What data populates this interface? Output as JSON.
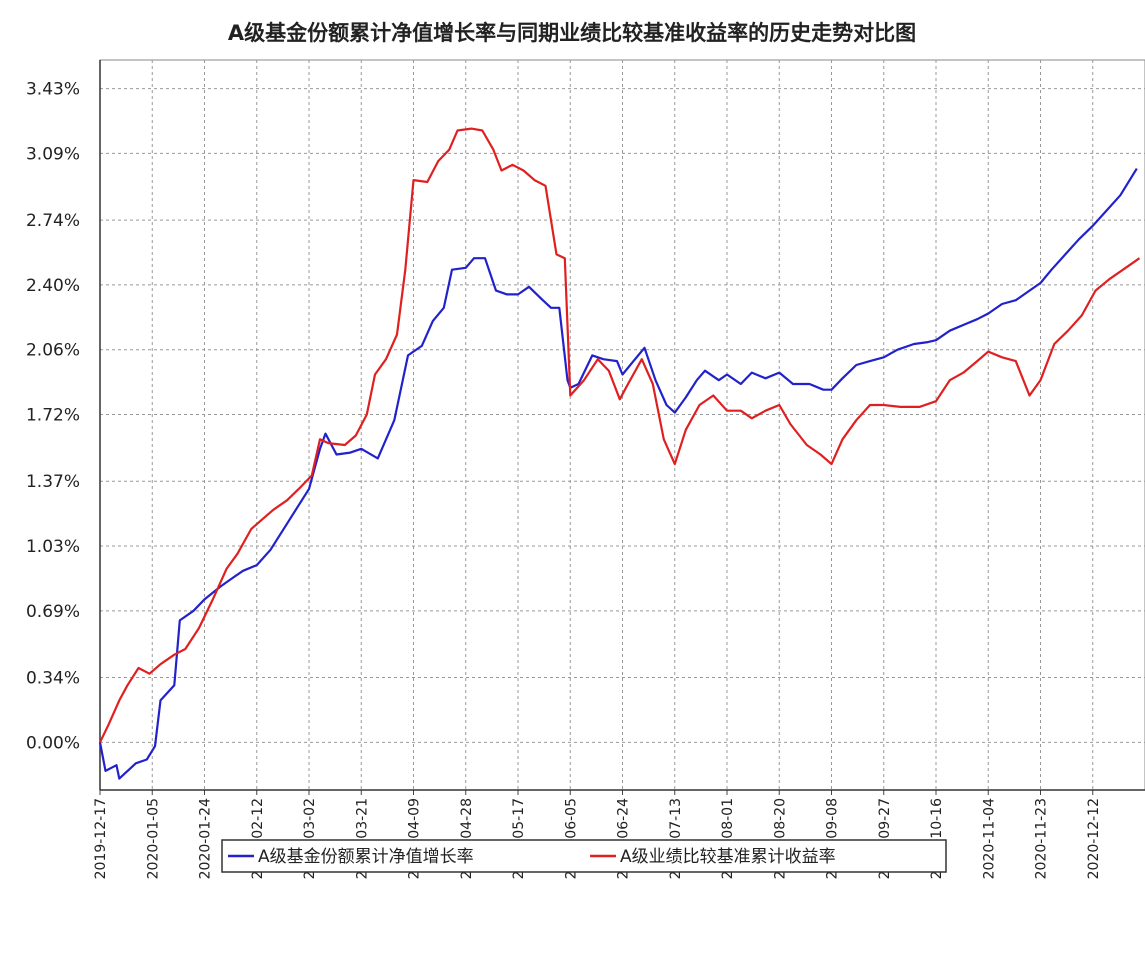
{
  "chart_data": {
    "type": "line",
    "title": "A级基金份额累计净值增长率与同期业绩比较基准收益率的历史走势对比图",
    "xlim": [
      "2019-12-17",
      "2020-12-31"
    ],
    "xticks": [
      "2019-12-17",
      "2020-01-05",
      "2020-01-24",
      "2020-02-12",
      "2020-03-02",
      "2020-03-21",
      "2020-04-09",
      "2020-04-28",
      "2020-05-17",
      "2020-06-05",
      "2020-06-24",
      "2020-07-13",
      "2020-08-01",
      "2020-08-20",
      "2020-09-08",
      "2020-09-27",
      "2020-10-16",
      "2020-11-04",
      "2020-11-23",
      "2020-12-12"
    ],
    "ylim": [
      -0.25,
      3.58
    ],
    "yticks": [
      {
        "value": 0.0,
        "label": "0.00%"
      },
      {
        "value": 0.34,
        "label": "0.34%"
      },
      {
        "value": 0.69,
        "label": "0.69%"
      },
      {
        "value": 1.03,
        "label": "1.03%"
      },
      {
        "value": 1.37,
        "label": "1.37%"
      },
      {
        "value": 1.72,
        "label": "1.72%"
      },
      {
        "value": 2.06,
        "label": "2.06%"
      },
      {
        "value": 2.4,
        "label": "2.40%"
      },
      {
        "value": 2.74,
        "label": "2.74%"
      },
      {
        "value": 3.09,
        "label": "3.09%"
      },
      {
        "value": 3.43,
        "label": "3.43%"
      }
    ],
    "grid": true,
    "legend": "bottom",
    "series": [
      {
        "name": "A级基金份额累计净值增长率",
        "color": "#2222cc",
        "x": [
          "2019-12-17",
          "2019-12-19",
          "2019-12-23",
          "2019-12-24",
          "2019-12-30",
          "2020-01-03",
          "2020-01-06",
          "2020-01-08",
          "2020-01-13",
          "2020-01-15",
          "2020-01-20",
          "2020-01-24",
          "2020-01-30",
          "2020-02-03",
          "2020-02-07",
          "2020-02-12",
          "2020-02-17",
          "2020-02-24",
          "2020-03-02",
          "2020-03-06",
          "2020-03-08",
          "2020-03-12",
          "2020-03-17",
          "2020-03-21",
          "2020-03-27",
          "2020-04-02",
          "2020-04-07",
          "2020-04-12",
          "2020-04-16",
          "2020-04-20",
          "2020-04-23",
          "2020-04-28",
          "2020-05-01",
          "2020-05-05",
          "2020-05-09",
          "2020-05-13",
          "2020-05-17",
          "2020-05-21",
          "2020-05-26",
          "2020-05-29",
          "2020-06-01",
          "2020-06-04",
          "2020-06-05",
          "2020-06-08",
          "2020-06-13",
          "2020-06-17",
          "2020-06-22",
          "2020-06-24",
          "2020-06-28",
          "2020-07-02",
          "2020-07-06",
          "2020-07-10",
          "2020-07-13",
          "2020-07-17",
          "2020-07-21",
          "2020-07-24",
          "2020-07-29",
          "2020-08-01",
          "2020-08-06",
          "2020-08-10",
          "2020-08-15",
          "2020-08-20",
          "2020-08-25",
          "2020-08-31",
          "2020-09-05",
          "2020-09-08",
          "2020-09-12",
          "2020-09-17",
          "2020-09-22",
          "2020-09-27",
          "2020-10-02",
          "2020-10-08",
          "2020-10-13",
          "2020-10-16",
          "2020-10-21",
          "2020-10-26",
          "2020-10-31",
          "2020-11-04",
          "2020-11-09",
          "2020-11-14",
          "2020-11-19",
          "2020-11-23",
          "2020-11-27",
          "2020-12-02",
          "2020-12-07",
          "2020-12-12",
          "2020-12-17",
          "2020-12-22",
          "2020-12-28"
        ],
        "values": [
          0.0,
          -0.15,
          -0.12,
          -0.19,
          -0.11,
          -0.09,
          -0.02,
          0.22,
          0.3,
          0.64,
          0.69,
          0.75,
          0.82,
          0.86,
          0.9,
          0.93,
          1.01,
          1.17,
          1.33,
          1.54,
          1.62,
          1.51,
          1.52,
          1.54,
          1.49,
          1.69,
          2.03,
          2.08,
          2.21,
          2.28,
          2.48,
          2.49,
          2.54,
          2.54,
          2.37,
          2.35,
          2.35,
          2.39,
          2.32,
          2.28,
          2.28,
          1.9,
          1.86,
          1.88,
          2.03,
          2.01,
          2.0,
          1.93,
          2.0,
          2.07,
          1.9,
          1.77,
          1.73,
          1.81,
          1.9,
          1.95,
          1.9,
          1.93,
          1.88,
          1.94,
          1.91,
          1.94,
          1.88,
          1.88,
          1.85,
          1.85,
          1.91,
          1.98,
          2.0,
          2.02,
          2.06,
          2.09,
          2.1,
          2.11,
          2.16,
          2.19,
          2.22,
          2.25,
          2.3,
          2.32,
          2.37,
          2.41,
          2.48,
          2.56,
          2.64,
          2.71,
          2.79,
          2.87,
          3.01
        ]
      },
      {
        "name": "A级业绩比较基准累计收益率",
        "color": "#e02020",
        "x": [
          "2019-12-17",
          "2019-12-20",
          "2019-12-24",
          "2019-12-27",
          "2019-12-31",
          "2020-01-04",
          "2020-01-08",
          "2020-01-13",
          "2020-01-17",
          "2020-01-22",
          "2020-01-27",
          "2020-02-01",
          "2020-02-05",
          "2020-02-10",
          "2020-02-14",
          "2020-02-18",
          "2020-02-23",
          "2020-02-28",
          "2020-03-03",
          "2020-03-06",
          "2020-03-09",
          "2020-03-15",
          "2020-03-19",
          "2020-03-23",
          "2020-03-26",
          "2020-03-30",
          "2020-04-03",
          "2020-04-06",
          "2020-04-09",
          "2020-04-14",
          "2020-04-18",
          "2020-04-22",
          "2020-04-25",
          "2020-04-30",
          "2020-05-04",
          "2020-05-08",
          "2020-05-11",
          "2020-05-15",
          "2020-05-19",
          "2020-05-23",
          "2020-05-27",
          "2020-05-31",
          "2020-06-03",
          "2020-06-05",
          "2020-06-10",
          "2020-06-15",
          "2020-06-19",
          "2020-06-23",
          "2020-06-26",
          "2020-07-01",
          "2020-07-05",
          "2020-07-09",
          "2020-07-13",
          "2020-07-17",
          "2020-07-22",
          "2020-07-27",
          "2020-08-01",
          "2020-08-06",
          "2020-08-10",
          "2020-08-15",
          "2020-08-20",
          "2020-08-24",
          "2020-08-30",
          "2020-09-04",
          "2020-09-08",
          "2020-09-12",
          "2020-09-17",
          "2020-09-22",
          "2020-09-27",
          "2020-10-03",
          "2020-10-10",
          "2020-10-16",
          "2020-10-21",
          "2020-10-26",
          "2020-10-31",
          "2020-11-04",
          "2020-11-09",
          "2020-11-14",
          "2020-11-19",
          "2020-11-23",
          "2020-11-28",
          "2020-12-03",
          "2020-12-08",
          "2020-12-13",
          "2020-12-18",
          "2020-12-23",
          "2020-12-29"
        ],
        "values": [
          0.0,
          0.09,
          0.22,
          0.3,
          0.39,
          0.36,
          0.41,
          0.46,
          0.49,
          0.6,
          0.75,
          0.91,
          0.99,
          1.12,
          1.17,
          1.22,
          1.27,
          1.34,
          1.4,
          1.59,
          1.57,
          1.56,
          1.61,
          1.72,
          1.93,
          2.01,
          2.14,
          2.48,
          2.95,
          2.94,
          3.05,
          3.11,
          3.21,
          3.22,
          3.21,
          3.11,
          3.0,
          3.03,
          3.0,
          2.95,
          2.92,
          2.56,
          2.54,
          1.82,
          1.9,
          2.01,
          1.95,
          1.8,
          1.88,
          2.01,
          1.88,
          1.59,
          1.46,
          1.64,
          1.77,
          1.82,
          1.74,
          1.74,
          1.7,
          1.74,
          1.77,
          1.67,
          1.56,
          1.51,
          1.46,
          1.59,
          1.69,
          1.77,
          1.77,
          1.76,
          1.76,
          1.79,
          1.9,
          1.94,
          2.0,
          2.05,
          2.02,
          2.0,
          1.82,
          1.9,
          2.09,
          2.16,
          2.24,
          2.37,
          2.43,
          2.48,
          2.54
        ]
      }
    ]
  }
}
